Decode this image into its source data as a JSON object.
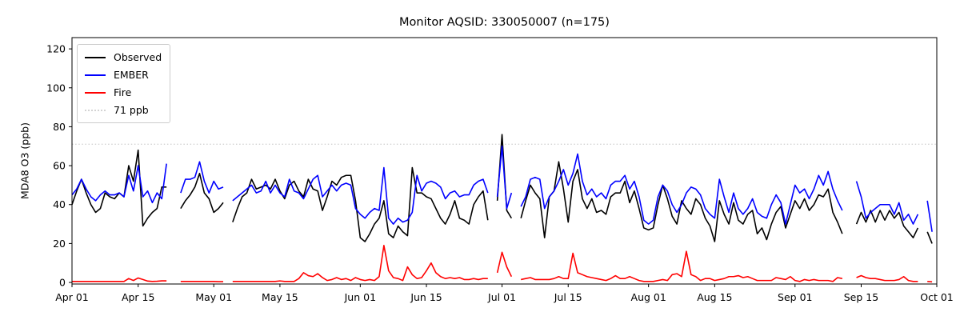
{
  "chart_data": {
    "type": "line",
    "title": "Monitor AQSID: 330050007 (n=175)",
    "xlabel": "",
    "ylabel": "MDA8 O3 (ppb)",
    "x_unit": "days since Apr 01",
    "xlim": [
      0,
      183
    ],
    "ylim": [
      -0.8,
      125.8
    ],
    "grid": false,
    "legend_position": "upper left",
    "x_ticks": [
      {
        "label": "Apr 01",
        "day": 0
      },
      {
        "label": "Apr 15",
        "day": 14
      },
      {
        "label": "May 01",
        "day": 30
      },
      {
        "label": "May 15",
        "day": 44
      },
      {
        "label": "Jun 01",
        "day": 61
      },
      {
        "label": "Jun 15",
        "day": 75
      },
      {
        "label": "Jul 01",
        "day": 91
      },
      {
        "label": "Jul 15",
        "day": 105
      },
      {
        "label": "Aug 01",
        "day": 122
      },
      {
        "label": "Aug 15",
        "day": 136
      },
      {
        "label": "Sep 01",
        "day": 153
      },
      {
        "label": "Sep 15",
        "day": 167
      },
      {
        "label": "Oct 01",
        "day": 183
      }
    ],
    "y_ticks": [
      0,
      20,
      40,
      60,
      80,
      100,
      120
    ],
    "threshold": {
      "label": "71 ppb",
      "value": 71,
      "color": "#d3d3d3"
    },
    "series": [
      {
        "name": "Observed",
        "color": "#000000",
        "values": [
          40,
          47,
          53,
          46,
          40,
          36,
          38,
          46,
          44,
          43,
          46,
          44,
          60,
          52,
          68,
          29,
          33,
          36,
          38,
          49,
          49,
          null,
          null,
          38,
          42,
          45,
          49,
          56,
          46,
          43,
          36,
          38,
          41,
          null,
          31,
          38,
          44,
          46,
          53,
          48,
          49,
          50,
          48,
          53,
          47,
          43,
          50,
          52,
          47,
          44,
          53,
          48,
          47,
          37,
          44,
          52,
          50,
          54,
          55,
          55,
          42,
          23,
          21,
          25,
          30,
          33,
          42,
          25,
          23,
          29,
          26,
          24,
          59,
          46,
          46,
          44,
          43,
          38,
          33,
          30,
          35,
          42,
          33,
          32,
          30,
          40,
          44,
          47,
          32,
          null,
          42,
          76,
          37,
          33,
          null,
          33,
          42,
          50,
          46,
          43,
          23,
          44,
          47,
          62,
          48,
          31,
          52,
          58,
          43,
          38,
          43,
          36,
          37,
          35,
          44,
          46,
          46,
          52,
          41,
          47,
          38,
          28,
          27,
          28,
          40,
          50,
          43,
          34,
          30,
          42,
          38,
          35,
          43,
          40,
          33,
          29,
          21,
          42,
          35,
          30,
          41,
          32,
          30,
          35,
          37,
          25,
          28,
          22,
          30,
          36,
          39,
          28,
          35,
          42,
          38,
          43,
          37,
          40,
          45,
          44,
          48,
          36,
          31,
          25,
          null,
          null,
          30,
          36,
          31,
          37,
          31,
          37,
          32,
          37,
          33,
          36,
          29,
          26,
          23,
          28,
          null,
          26,
          20
        ]
      },
      {
        "name": "EMBER",
        "color": "#0000ff",
        "values": [
          45,
          48,
          53,
          48,
          44,
          42,
          45,
          47,
          45,
          45,
          46,
          44,
          55,
          47,
          60,
          44,
          47,
          41,
          46,
          43,
          61,
          null,
          null,
          46,
          53,
          53,
          54,
          62,
          52,
          46,
          52,
          48,
          49,
          null,
          42,
          44,
          46,
          48,
          50,
          46,
          47,
          52,
          46,
          50,
          46,
          44,
          53,
          47,
          46,
          43,
          48,
          53,
          55,
          44,
          47,
          50,
          47,
          50,
          51,
          50,
          38,
          35,
          33,
          36,
          38,
          37,
          59,
          33,
          30,
          33,
          31,
          32,
          36,
          55,
          47,
          51,
          52,
          51,
          49,
          43,
          46,
          47,
          44,
          45,
          45,
          50,
          52,
          53,
          46,
          null,
          44,
          70,
          38,
          46,
          null,
          39,
          44,
          53,
          54,
          53,
          38,
          44,
          47,
          52,
          58,
          50,
          56,
          66,
          52,
          45,
          48,
          44,
          46,
          43,
          50,
          52,
          52,
          55,
          48,
          52,
          44,
          32,
          30,
          32,
          44,
          50,
          47,
          40,
          36,
          40,
          46,
          49,
          48,
          45,
          38,
          35,
          33,
          53,
          44,
          36,
          46,
          38,
          35,
          38,
          43,
          36,
          34,
          33,
          40,
          45,
          41,
          30,
          40,
          50,
          46,
          48,
          43,
          48,
          55,
          50,
          57,
          48,
          42,
          37,
          null,
          null,
          52,
          44,
          33,
          36,
          38,
          40,
          40,
          40,
          35,
          41,
          32,
          35,
          30,
          35,
          null,
          42,
          26
        ]
      },
      {
        "name": "Fire",
        "color": "#ff0000",
        "values": [
          0.5,
          0.5,
          0.5,
          0.5,
          0.5,
          0.5,
          0.5,
          0.5,
          0.5,
          0.5,
          0.5,
          0.5,
          2,
          1,
          2.3,
          1.5,
          0.7,
          0.5,
          0.6,
          0.8,
          0.8,
          null,
          null,
          0.5,
          0.5,
          0.5,
          0.5,
          0.5,
          0.5,
          0.5,
          0.5,
          0.4,
          0.4,
          null,
          0.5,
          0.5,
          0.5,
          0.5,
          0.5,
          0.5,
          0.5,
          0.5,
          0.5,
          0.5,
          0.8,
          0.5,
          0.5,
          0.5,
          2,
          5,
          3.5,
          3,
          4.5,
          2.5,
          1,
          1.5,
          2.5,
          1.5,
          2,
          1,
          2.5,
          1.5,
          1,
          1.5,
          1,
          3,
          19,
          6,
          2.5,
          2,
          1,
          8,
          4,
          2,
          2.5,
          6,
          10,
          5,
          3,
          2,
          2.5,
          2,
          2.5,
          1.5,
          1.5,
          2,
          1.5,
          2,
          2,
          null,
          5,
          15.5,
          8,
          3,
          null,
          1.5,
          2,
          2.5,
          1.5,
          1.5,
          1.5,
          1.5,
          2,
          3,
          2,
          2,
          15,
          5,
          4,
          3,
          2.5,
          2,
          1.5,
          1,
          2,
          3.5,
          2,
          2,
          3,
          2,
          1,
          0.5,
          0.5,
          0.5,
          1,
          1.5,
          1,
          4,
          4.5,
          3,
          16,
          4,
          3,
          1,
          2,
          2,
          1,
          1.5,
          2,
          3,
          3,
          3.5,
          2.5,
          3,
          2,
          1,
          1,
          1,
          1,
          2.5,
          2,
          1.5,
          3,
          1,
          0.5,
          1.5,
          1,
          1.5,
          1,
          1,
          1,
          0.5,
          2.5,
          2,
          null,
          null,
          2.5,
          3.5,
          2.5,
          2,
          2,
          1.5,
          1,
          1,
          1,
          1.5,
          3,
          1,
          0.5,
          0.5,
          null,
          0.5,
          0.3
        ]
      }
    ]
  }
}
